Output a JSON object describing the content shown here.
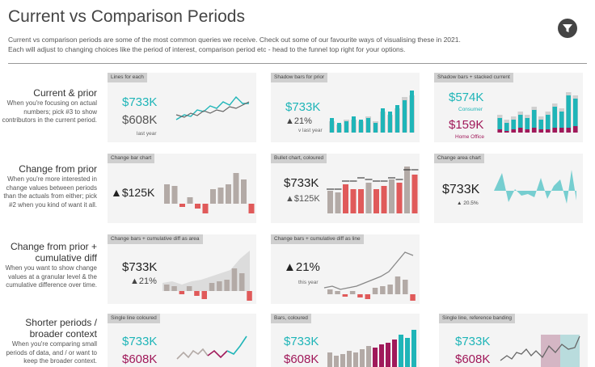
{
  "header": {
    "title": "Current vs Comparison Periods",
    "desc_line1": "Current vs comparison periods are some of the most common queries we receive. Check out some of our favourite ways of visualising these in 2021.",
    "desc_line2": "Each will adjust to changing choices like the period of interest, comparison period etc - head to the funnel top right for your options.",
    "filter_icon": "funnel-icon"
  },
  "rows": [
    {
      "heading": "Current & prior",
      "sub": "When you're focusing on actual numbers; pick #3 to show contributors in the current period."
    },
    {
      "heading": "Change from prior",
      "sub": "When you're more interested in change values between periods than the actuals from either; pick #2 when you kind of want it all."
    },
    {
      "heading1": "Change from prior +",
      "heading2": "cumulative diff",
      "sub": "When you want to show change values at a granular level & the cumulative difference over time."
    },
    {
      "heading1": "Shorter periods /",
      "heading2": "broader context",
      "sub": "When you're comparing small periods of data, and / or want to keep the broader context."
    }
  ],
  "cards": {
    "c11": {
      "tag": "Lines for each",
      "v1": "$733K",
      "v2": "$608K",
      "sub": "last year"
    },
    "c12": {
      "tag": "Shadow bars for prior",
      "v1": "$733K",
      "v2": "▲21%",
      "sub": "v last year"
    },
    "c13": {
      "tag": "Shadow bars + stacked current",
      "v1": "$574K",
      "l1": "Consumer",
      "v2": "$159K",
      "l2": "Home Office"
    },
    "c21": {
      "tag": "Change bar chart",
      "v1": "▲$125K"
    },
    "c22": {
      "tag": "Bullet chart, coloured",
      "v1": "$733K",
      "v2": "▲$125K"
    },
    "c23": {
      "tag": "Change area chart",
      "v1": "$733K",
      "v2": "▲ 20.5%"
    },
    "c31": {
      "tag": "Change bars + cumulative diff as area",
      "v1": "$733K",
      "v2": "▲21%"
    },
    "c32": {
      "tag": "Change bars + cumulative diff as line",
      "v1": "▲21%",
      "sub": "this year"
    },
    "c41": {
      "tag": "Single line coloured",
      "v1": "$733K",
      "v2": "$608K"
    },
    "c42": {
      "tag": "Bars, coloured",
      "v1": "$733K",
      "v2": "$608K"
    },
    "c43": {
      "tag": "Single line, reference banding",
      "v1": "$733K",
      "v2": "$608K"
    }
  },
  "colors": {
    "teal": "#1fb5b8",
    "gray": "#b3aaa6",
    "red": "#e05a5a",
    "magenta": "#a0195a",
    "band_pink": "#d4b6c4",
    "band_teal": "#b9dcdd"
  }
}
